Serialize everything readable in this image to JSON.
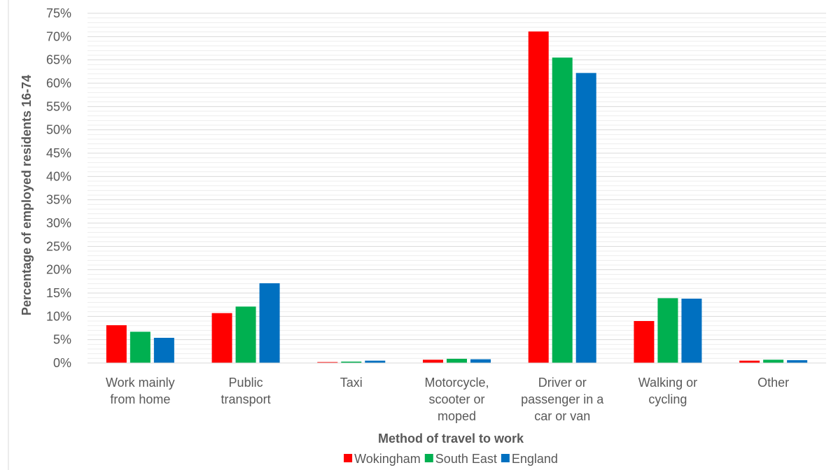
{
  "chart_data": {
    "type": "bar",
    "title": "",
    "xlabel": "Method of travel to work",
    "ylabel": "Percentage of employed residents 16-74",
    "ylim": [
      0,
      75
    ],
    "ytick_step": 5,
    "ytick_suffix": "%",
    "grid": true,
    "legend_position": "bottom",
    "categories": [
      [
        "Work mainly",
        "from home"
      ],
      [
        "Public",
        "transport"
      ],
      [
        "Taxi"
      ],
      [
        "Motorcycle,",
        "scooter or",
        "moped"
      ],
      [
        "Driver or",
        "passenger in a",
        "car or van"
      ],
      [
        "Walking or",
        "cycling"
      ],
      [
        "Other"
      ]
    ],
    "series": [
      {
        "name": "Wokingham",
        "color": "#ff0000",
        "values": [
          8.1,
          10.7,
          0.2,
          0.7,
          71.1,
          9.0,
          0.5
        ]
      },
      {
        "name": "South East",
        "color": "#00b050",
        "values": [
          6.7,
          12.1,
          0.3,
          0.9,
          65.5,
          13.9,
          0.7
        ]
      },
      {
        "name": "England",
        "color": "#0070c0",
        "values": [
          5.4,
          17.1,
          0.5,
          0.8,
          62.2,
          13.8,
          0.6
        ]
      }
    ]
  }
}
